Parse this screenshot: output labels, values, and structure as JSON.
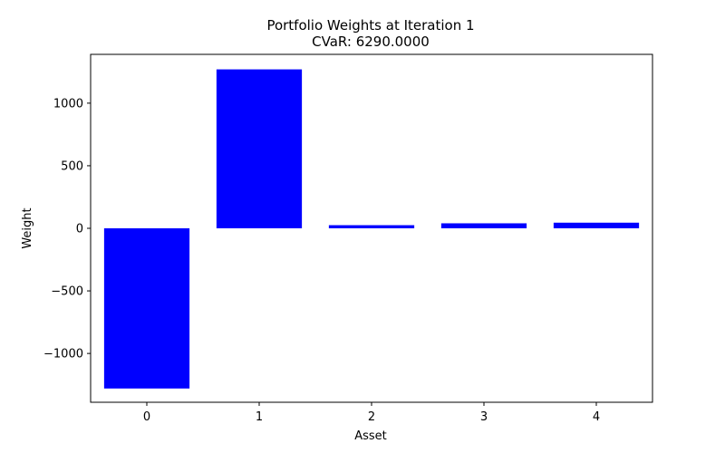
{
  "chart_data": {
    "type": "bar",
    "title": "Portfolio Weights at Iteration 1",
    "subtitle": "CVaR: 6290.0000",
    "xlabel": "Asset",
    "ylabel": "Weight",
    "categories": [
      "0",
      "1",
      "2",
      "3",
      "4"
    ],
    "values": [
      -1280,
      1270,
      25,
      40,
      45
    ],
    "ylim": [
      -1390,
      1390
    ],
    "yticks": [
      -1000,
      -500,
      0,
      500,
      1000
    ],
    "ytick_labels": [
      "−1000",
      "−500",
      "0",
      "500",
      "1000"
    ],
    "bar_color": "#0000ff",
    "grid": false,
    "legend": "none"
  }
}
